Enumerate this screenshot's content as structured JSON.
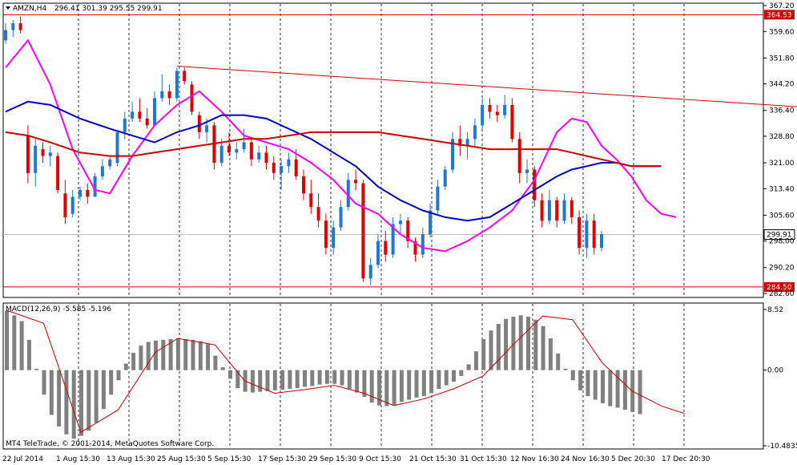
{
  "header": {
    "symbol": "AMZN,H4",
    "ohlc": "296.41 301.39 295.55 299.91",
    "indicator": "MACD(12,26,9) -5.585 -5.196",
    "copyright": "MT4 TeleTrade, © 2001-2014, MetaQuotes Software Corp."
  },
  "chart_data": [
    {
      "type": "candlestick",
      "price_axis": {
        "ticks": [
          "367.20",
          "359.60",
          "351.80",
          "344.20",
          "336.40",
          "328.80",
          "321.00",
          "313.40",
          "305.60",
          "298.00",
          "290.20",
          "282.60"
        ],
        "min": 282.6,
        "max": 367.2
      },
      "horizontal_levels": [
        {
          "value": 364.53,
          "label": "364.53",
          "color": "#d40000"
        },
        {
          "value": 284.5,
          "label": "284.50",
          "color": "#d40000"
        }
      ],
      "current_price": {
        "value": 299.91,
        "label": "299.91"
      },
      "trendline": {
        "from": {
          "bar": 23,
          "price": 349.4
        },
        "to": {
          "bar": 111,
          "price": 336.8
        },
        "color": "#d40000"
      },
      "time_axis": [
        "22 Jul 2014",
        "1 Aug 15:30",
        "13 Aug 15:30",
        "25 Aug 15:30",
        "5 Sep 15:30",
        "17 Sep 15:30",
        "29 Sep 15:30",
        "9 Oct 15:30",
        "21 Oct 15:30",
        "31 Oct 15:30",
        "12 Nov 16:30",
        "24 Nov 16:30",
        "5 Dec 20:30",
        "17 Dec 20:30"
      ],
      "series": [
        {
          "kind": "moving-average",
          "color": "#ff00ff",
          "points": [
            [
              0,
              349
            ],
            [
              3,
              357
            ],
            [
              6,
              344
            ],
            [
              9,
              325
            ],
            [
              12,
              313
            ],
            [
              14,
              312
            ],
            [
              17,
              323
            ],
            [
              20,
              332
            ],
            [
              23,
              338
            ],
            [
              26,
              342
            ],
            [
              29,
              336
            ],
            [
              32,
              329
            ],
            [
              35,
              327
            ],
            [
              38,
              325
            ],
            [
              41,
              321
            ],
            [
              44,
              316
            ],
            [
              47,
              309
            ],
            [
              50,
              306
            ],
            [
              53,
              300
            ],
            [
              56,
              296
            ],
            [
              59,
              295
            ],
            [
              62,
              298
            ],
            [
              65,
              302
            ],
            [
              68,
              307
            ],
            [
              71,
              316
            ],
            [
              74,
              330
            ],
            [
              76,
              334
            ],
            [
              78,
              333
            ],
            [
              80,
              326
            ],
            [
              82,
              322
            ],
            [
              84,
              317
            ],
            [
              86,
              310
            ],
            [
              88,
              306
            ],
            [
              90,
              305
            ]
          ]
        },
        {
          "kind": "moving-average",
          "color": "#0000c8",
          "points": [
            [
              0,
              336
            ],
            [
              3,
              339
            ],
            [
              6,
              338
            ],
            [
              10,
              334
            ],
            [
              14,
              331
            ],
            [
              17,
              329
            ],
            [
              20,
              327
            ],
            [
              23,
              330
            ],
            [
              26,
              332
            ],
            [
              29,
              335
            ],
            [
              32,
              335
            ],
            [
              35,
              334
            ],
            [
              38,
              331
            ],
            [
              41,
              328
            ],
            [
              44,
              324
            ],
            [
              47,
              320
            ],
            [
              50,
              314
            ],
            [
              53,
              310
            ],
            [
              56,
              307
            ],
            [
              59,
              305
            ],
            [
              62,
              304
            ],
            [
              65,
              305
            ],
            [
              68,
              309
            ],
            [
              71,
              313
            ],
            [
              74,
              317
            ],
            [
              76,
              319
            ],
            [
              78,
              320
            ],
            [
              80,
              321
            ],
            [
              82,
              321
            ],
            [
              84,
              320
            ],
            [
              86,
              320
            ],
            [
              88,
              320
            ]
          ]
        },
        {
          "kind": "moving-average",
          "color": "#c80000",
          "points": [
            [
              0,
              330
            ],
            [
              3,
              329
            ],
            [
              6,
              327
            ],
            [
              10,
              324
            ],
            [
              14,
              323
            ],
            [
              17,
              323
            ],
            [
              20,
              324
            ],
            [
              23,
              325
            ],
            [
              26,
              326
            ],
            [
              29,
              327
            ],
            [
              32,
              328
            ],
            [
              35,
              328
            ],
            [
              38,
              329
            ],
            [
              41,
              330
            ],
            [
              44,
              330
            ],
            [
              47,
              330
            ],
            [
              50,
              330
            ],
            [
              53,
              329
            ],
            [
              56,
              328
            ],
            [
              59,
              327
            ],
            [
              62,
              326
            ],
            [
              65,
              325
            ],
            [
              68,
              325
            ],
            [
              71,
              325
            ],
            [
              74,
              325
            ],
            [
              76,
              324
            ],
            [
              78,
              323
            ],
            [
              80,
              322
            ],
            [
              82,
              321
            ],
            [
              84,
              320
            ],
            [
              86,
              320
            ],
            [
              88,
              320
            ]
          ]
        }
      ],
      "candles": [
        [
          0,
          357,
          362,
          356,
          360
        ],
        [
          1,
          360,
          363,
          358,
          362
        ],
        [
          2,
          362,
          364,
          359,
          360
        ],
        [
          3,
          329,
          332,
          315,
          318
        ],
        [
          4,
          318,
          328,
          314,
          326
        ],
        [
          5,
          325,
          327,
          321,
          323
        ],
        [
          6,
          323,
          326,
          320,
          324
        ],
        [
          7,
          323,
          324,
          312,
          313
        ],
        [
          8,
          312,
          316,
          303,
          305
        ],
        [
          9,
          306,
          313,
          305,
          311
        ],
        [
          10,
          311,
          314,
          310,
          313
        ],
        [
          11,
          313,
          315,
          309,
          311
        ],
        [
          12,
          311,
          318,
          311,
          317
        ],
        [
          13,
          317,
          322,
          316,
          320
        ],
        [
          14,
          320,
          323,
          319,
          322
        ],
        [
          15,
          321,
          330,
          320,
          330
        ],
        [
          16,
          330,
          336,
          328,
          334
        ],
        [
          17,
          334,
          339,
          333,
          336
        ],
        [
          18,
          336,
          340,
          333,
          334
        ],
        [
          19,
          334,
          337,
          331,
          332
        ],
        [
          20,
          332,
          342,
          332,
          340
        ],
        [
          21,
          340,
          347,
          339,
          342
        ],
        [
          22,
          342,
          344,
          338,
          340
        ],
        [
          23,
          340,
          349,
          339,
          348
        ],
        [
          24,
          348,
          349,
          344,
          345
        ],
        [
          25,
          344,
          345,
          335,
          336
        ],
        [
          26,
          335,
          336,
          328,
          330
        ],
        [
          27,
          330,
          334,
          327,
          332
        ],
        [
          28,
          332,
          333,
          319,
          321
        ],
        [
          29,
          321,
          328,
          320,
          326
        ],
        [
          30,
          326,
          330,
          323,
          324
        ],
        [
          31,
          324,
          327,
          322,
          325
        ],
        [
          32,
          325,
          331,
          324,
          327
        ],
        [
          33,
          327,
          328,
          320,
          322
        ],
        [
          34,
          322,
          326,
          321,
          324
        ],
        [
          35,
          324,
          326,
          319,
          321
        ],
        [
          36,
          321,
          323,
          316,
          318
        ],
        [
          37,
          318,
          322,
          313,
          320
        ],
        [
          38,
          320,
          324,
          318,
          322
        ],
        [
          39,
          322,
          325,
          316,
          317
        ],
        [
          40,
          317,
          319,
          310,
          312
        ],
        [
          41,
          312,
          316,
          306,
          308
        ],
        [
          42,
          308,
          312,
          302,
          304
        ],
        [
          43,
          304,
          306,
          294,
          296
        ],
        [
          44,
          296,
          304,
          294,
          302
        ],
        [
          45,
          302,
          310,
          301,
          308
        ],
        [
          46,
          308,
          318,
          307,
          316
        ],
        [
          47,
          316,
          319,
          313,
          315
        ],
        [
          48,
          315,
          316,
          286,
          287
        ],
        [
          49,
          287,
          293,
          285,
          291
        ],
        [
          50,
          291,
          300,
          290,
          298
        ],
        [
          51,
          298,
          301,
          292,
          294
        ],
        [
          52,
          294,
          305,
          293,
          303
        ],
        [
          53,
          303,
          306,
          300,
          304
        ],
        [
          54,
          304,
          305,
          296,
          298
        ],
        [
          55,
          298,
          299,
          292,
          294
        ],
        [
          56,
          294,
          302,
          293,
          300
        ],
        [
          57,
          300,
          309,
          299,
          307
        ],
        [
          58,
          307,
          316,
          306,
          314
        ],
        [
          59,
          314,
          320,
          313,
          319
        ],
        [
          60,
          319,
          330,
          318,
          328
        ],
        [
          61,
          328,
          332,
          323,
          326
        ],
        [
          62,
          326,
          330,
          322,
          328
        ],
        [
          63,
          328,
          334,
          326,
          332
        ],
        [
          64,
          332,
          340,
          331,
          338
        ],
        [
          65,
          338,
          340,
          334,
          336
        ],
        [
          66,
          336,
          338,
          333,
          335
        ],
        [
          67,
          335,
          341,
          334,
          338
        ],
        [
          68,
          338,
          340,
          327,
          328
        ],
        [
          69,
          328,
          330,
          315,
          318
        ],
        [
          70,
          318,
          322,
          315,
          319
        ],
        [
          71,
          319,
          320,
          308,
          310
        ],
        [
          72,
          310,
          312,
          302,
          304
        ],
        [
          73,
          304,
          313,
          303,
          310
        ],
        [
          74,
          310,
          311,
          302,
          304
        ],
        [
          75,
          304,
          312,
          303,
          310
        ],
        [
          76,
          310,
          311,
          303,
          305
        ],
        [
          77,
          305,
          307,
          294,
          296
        ],
        [
          78,
          296,
          306,
          293,
          304
        ],
        [
          79,
          304,
          306,
          294,
          296
        ],
        [
          80,
          296,
          301,
          295,
          300
        ]
      ]
    },
    {
      "type": "macd-histogram",
      "axis": {
        "ticks": [
          "8.52",
          "0.00",
          "-10.4835"
        ],
        "max": 8.52,
        "min": -10.4835
      },
      "histogram": [
        8.2,
        7.6,
        6.8,
        4.2,
        0.2,
        -3.4,
        -6.2,
        -7.8,
        -8.9,
        -9.5,
        -9.1,
        -8.4,
        -7.3,
        -5.4,
        -3.4,
        -1.4,
        0.9,
        2.4,
        3.4,
        3.9,
        4.1,
        4.2,
        4.3,
        4.4,
        4.3,
        4.2,
        4.0,
        3.6,
        2.0,
        0.4,
        -1.2,
        -2.5,
        -3.0,
        -3.1,
        -3.0,
        -2.9,
        -2.8,
        -2.7,
        -2.6,
        -2.5,
        -2.3,
        -2.2,
        -2.0,
        -1.9,
        -1.9,
        -2.1,
        -2.6,
        -3.1,
        -3.7,
        -4.5,
        -4.9,
        -5.0,
        -4.8,
        -4.4,
        -4.1,
        -3.8,
        -3.6,
        -3.2,
        -2.6,
        -2.1,
        -1.6,
        -0.8,
        0.8,
        2.6,
        4.3,
        5.5,
        6.4,
        7.1,
        7.4,
        7.6,
        7.4,
        7.0,
        6.1,
        4.4,
        2.3,
        0.2,
        -1.4,
        -2.8,
        -3.6,
        -4.1,
        -4.6,
        -5.0,
        -5.2,
        -5.5,
        -5.8,
        -6.1
      ],
      "signal": [
        [
          0,
          8.3
        ],
        [
          5,
          6.5
        ],
        [
          10,
          -8.6
        ],
        [
          15,
          -5.5
        ],
        [
          20,
          2.5
        ],
        [
          23,
          4.4
        ],
        [
          28,
          3.5
        ],
        [
          32,
          -1.5
        ],
        [
          36,
          -3.2
        ],
        [
          40,
          -2.7
        ],
        [
          44,
          -2.1
        ],
        [
          48,
          -3.2
        ],
        [
          52,
          -4.9
        ],
        [
          56,
          -4.0
        ],
        [
          60,
          -2.6
        ],
        [
          64,
          -0.8
        ],
        [
          68,
          3.5
        ],
        [
          72,
          7.5
        ],
        [
          76,
          7.0
        ],
        [
          80,
          1.0
        ],
        [
          84,
          -2.9
        ],
        [
          88,
          -5.0
        ],
        [
          91,
          -6.0
        ]
      ]
    }
  ]
}
